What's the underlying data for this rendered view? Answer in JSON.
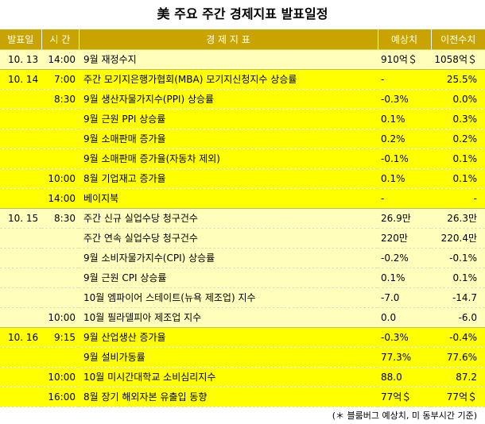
{
  "title": "美 주요 주간 경제지표 발표일정",
  "headers": {
    "date": "발표일",
    "time": "시 간",
    "indicator": "경 제 지 표",
    "forecast": "예상치",
    "previous": "이전수치"
  },
  "rows": [
    {
      "date": "10. 13",
      "time": "14:00",
      "indicator": "9월 재정수지",
      "forecast": "910억＄",
      "previous": "1058억＄"
    },
    {
      "date": "10. 14",
      "time": "7:00",
      "indicator": "주간 모기지은행가협회(MBA) 모기지신청지수 상승률",
      "forecast": "-",
      "previous": "25.5%"
    },
    {
      "date": "",
      "time": "8:30",
      "indicator": "9월 생산자물가지수(PPI) 상승률",
      "forecast": "-0.3%",
      "previous": "0.0%"
    },
    {
      "date": "",
      "time": "",
      "indicator": "9월 근원 PPI 상승률",
      "forecast": "0.1%",
      "previous": "0.3%"
    },
    {
      "date": "",
      "time": "",
      "indicator": "9월 소매판매 증가율",
      "forecast": "0.2%",
      "previous": "0.2%"
    },
    {
      "date": "",
      "time": "",
      "indicator": "9월 소매판매 증가율(자동차 제외)",
      "forecast": "-0.1%",
      "previous": "0.1%"
    },
    {
      "date": "",
      "time": "10:00",
      "indicator": "8월 기업재고 증가율",
      "forecast": "0.1%",
      "previous": "0.1%"
    },
    {
      "date": "",
      "time": "14:00",
      "indicator": "베이지북",
      "forecast": "-",
      "previous": "-"
    },
    {
      "date": "10. 15",
      "time": "8:30",
      "indicator": "주간 신규 실업수당 청구건수",
      "forecast": "26.9만",
      "previous": "26.3만"
    },
    {
      "date": "",
      "time": "",
      "indicator": "주간 연속 실업수당 청구건수",
      "forecast": "220만",
      "previous": "220.4만"
    },
    {
      "date": "",
      "time": "",
      "indicator": "9월 소비자물가지수(CPI) 상승률",
      "forecast": "-0.2%",
      "previous": "-0.1%"
    },
    {
      "date": "",
      "time": "",
      "indicator": "9월 근원 CPI 상승률",
      "forecast": "0.1%",
      "previous": "0.1%"
    },
    {
      "date": "",
      "time": "",
      "indicator": "10월 엠파이어 스테이트(뉴욕 제조업) 지수",
      "forecast": "-7.0",
      "previous": "-14.7"
    },
    {
      "date": "",
      "time": "10:00",
      "indicator": "10월 필라델피아 제조업 지수",
      "forecast": "0.0",
      "previous": "-6.0"
    },
    {
      "date": "10. 16",
      "time": "9:15",
      "indicator": "9월 산업생산 증가율",
      "forecast": "-0.3%",
      "previous": "-0.4%"
    },
    {
      "date": "",
      "time": "",
      "indicator": "9월 설비가동률",
      "forecast": "77.3%",
      "previous": "77.6%"
    },
    {
      "date": "",
      "time": "10:00",
      "indicator": "10월 미시간대학교 소비심리지수",
      "forecast": "88.0",
      "previous": "87.2"
    },
    {
      "date": "",
      "time": "16:00",
      "indicator": "8월 장기 해외자본 유출입 동향",
      "forecast": "77억＄",
      "previous": "77억＄"
    }
  ],
  "footnote": "(＊ 블룸버그 예상치, 미 동부시간 기준)",
  "colors": {
    "header_bg": "#c9a400",
    "row_yellow": "#ffff00",
    "row_pale": "#ffffbb"
  }
}
